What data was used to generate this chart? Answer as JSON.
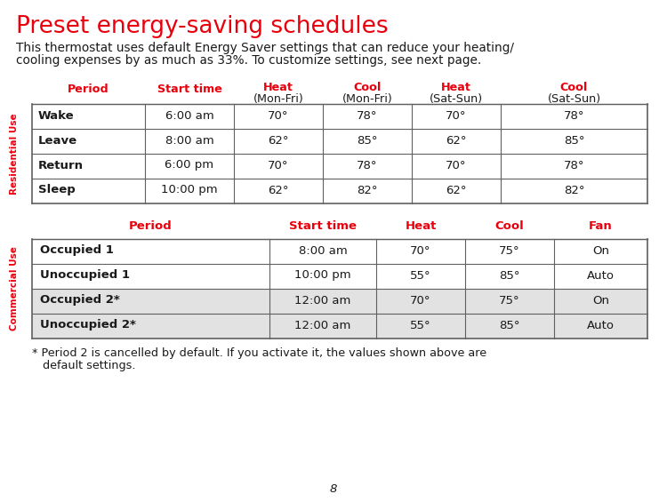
{
  "title": "Preset energy-saving schedules",
  "title_color": "#e8000d",
  "body_text_line1": "This thermostat uses default Energy Saver settings that can reduce your heating/",
  "body_text_line2": "cooling expenses by as much as 33%. To customize settings, see next page.",
  "residential_label": "Residential Use",
  "commercial_label": "Commercial Use",
  "res_headers": [
    [
      "Period",
      "",
      true
    ],
    [
      "Start time",
      "",
      true
    ],
    [
      "Heat",
      "(Mon-Fri)",
      true
    ],
    [
      "Cool",
      "(Mon-Fri)",
      true
    ],
    [
      "Heat",
      "(Sat-Sun)",
      true
    ],
    [
      "Cool",
      "(Sat-Sun)",
      true
    ]
  ],
  "residential_rows": [
    [
      "Wake",
      "6:00 am",
      "70°",
      "78°",
      "70°",
      "78°"
    ],
    [
      "Leave",
      "8:00 am",
      "62°",
      "85°",
      "62°",
      "85°"
    ],
    [
      "Return",
      "6:00 pm",
      "70°",
      "78°",
      "70°",
      "78°"
    ],
    [
      "Sleep",
      "10:00 pm",
      "62°",
      "82°",
      "62°",
      "82°"
    ]
  ],
  "com_headers": [
    "Period",
    "Start time",
    "Heat",
    "Cool",
    "Fan"
  ],
  "commercial_rows": [
    [
      "Occupied 1",
      "8:00 am",
      "70°",
      "75°",
      "On",
      false
    ],
    [
      "Unoccupied 1",
      "10:00 pm",
      "55°",
      "85°",
      "Auto",
      false
    ],
    [
      "Occupied 2*",
      "12:00 am",
      "70°",
      "75°",
      "On",
      true
    ],
    [
      "Unoccupied 2*",
      "12:00 am",
      "55°",
      "85°",
      "Auto",
      true
    ]
  ],
  "footnote_line1": "* Period 2 is cancelled by default. If you activate it, the values shown above are",
  "footnote_line2": "   default settings.",
  "page_number": "8",
  "red_color": "#e8000d",
  "dark_color": "#1a1a1a",
  "gray_bg": "#e2e2e2",
  "white_bg": "#ffffff",
  "border_color": "#606060"
}
